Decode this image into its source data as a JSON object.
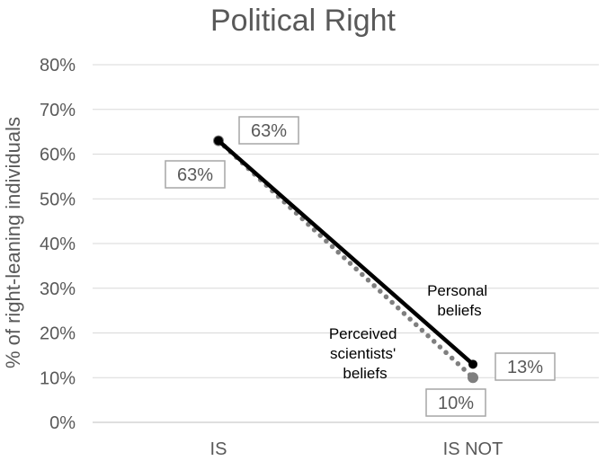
{
  "chart_data": {
    "type": "line",
    "title": "Political Right",
    "xlabel": "",
    "ylabel": "% of right-leaning individuals",
    "categories": [
      "IS",
      "IS NOT"
    ],
    "ylim": [
      0,
      80
    ],
    "yticks": [
      "0%",
      "10%",
      "20%",
      "30%",
      "40%",
      "50%",
      "60%",
      "70%",
      "80%"
    ],
    "grid": true,
    "series": [
      {
        "name": "Personal beliefs",
        "values": [
          63,
          13
        ],
        "labels": [
          "63%",
          "13%"
        ],
        "color": "#000000",
        "style": "solid"
      },
      {
        "name": "Perceived scientists' beliefs",
        "values": [
          63,
          10
        ],
        "labels": [
          "63%",
          "10%"
        ],
        "color": "#7f7f7f",
        "style": "dotted"
      }
    ],
    "annotations": [
      {
        "lines": [
          "Personal",
          "beliefs"
        ]
      },
      {
        "lines": [
          "Perceived",
          "scientists'",
          "beliefs"
        ]
      }
    ]
  }
}
